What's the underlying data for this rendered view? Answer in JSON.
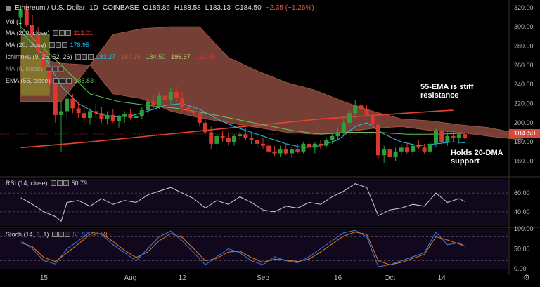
{
  "header": {
    "symbol": "Ethereum / U.S. Dollar",
    "interval": "1D",
    "exchange": "COINBASE",
    "open": "O186.86",
    "high": "H188.58",
    "low": "L183.13",
    "close": "C184.50",
    "change": "−2.35 (−1.26%)"
  },
  "legend": {
    "vol": "Vol (1",
    "ma200": {
      "label": "MA (200, close)",
      "value": "212.01",
      "color": "#e8412e"
    },
    "ma20": {
      "label": "MA (20, close)",
      "value": "178.95",
      "color": "#26b8e8"
    },
    "ichimoku": {
      "label": "Ichimoku (9, 26, 52, 26)",
      "values": [
        "183.27",
        "187.25",
        "184.50",
        "196.67",
        "192.35"
      ],
      "colors": [
        "#26b8e8",
        "#b05a3a",
        "#9bc36a",
        "#c8d67a",
        "#c83a3a"
      ]
    },
    "ma5": {
      "label": "MA (5, close)"
    },
    "ema55": {
      "label": "EMA (55, close)",
      "value": "188.83",
      "color": "#6fbf5a"
    }
  },
  "annotations": {
    "resistance": [
      "55-EMA is stiff",
      "resistance"
    ],
    "support": [
      "Holds 20-DMA",
      "support"
    ]
  },
  "last_price": "184.50",
  "rsi": {
    "label": "RSI (14, close)",
    "value": "50.79",
    "color": "#d0d0d0"
  },
  "stoch": {
    "label": "Stoch (14, 3, 1)",
    "k_value": "55.87",
    "d_value": "56.09",
    "k_color": "#3a7ee8",
    "d_color": "#e87a1a"
  },
  "colors": {
    "up": "#2e9e3a",
    "down": "#d8382e",
    "cloud": "#8a4a3e",
    "cloud_green": "#8a8a2a",
    "ema": "#6fbf5a",
    "ma200": "#e8412e",
    "ma20": "#26b8e8"
  },
  "chart_data": {
    "type": "line",
    "title": "Ethereum / U.S. Dollar 1D COINBASE",
    "x_ticks": [
      "15",
      "Aug",
      "12",
      "Sep",
      "16",
      "Oct",
      "14"
    ],
    "price_axis": {
      "ticks": [
        "320.00",
        "300.00",
        "280.00",
        "260.00",
        "240.00",
        "220.00",
        "200.00",
        "180.00",
        "160.00"
      ],
      "range": [
        145,
        325
      ]
    },
    "rsi_axis": {
      "ticks": [
        "60.00",
        "40.00"
      ],
      "range": [
        25,
        75
      ]
    },
    "stoch_axis": {
      "ticks": [
        "100.00",
        "50.00",
        "0.00"
      ],
      "range": [
        0,
        100
      ]
    },
    "candles": [
      [
        -2,
        310,
        322,
        298,
        318
      ],
      [
        -1,
        318,
        324,
        300,
        302
      ],
      [
        0,
        302,
        312,
        282,
        290
      ],
      [
        1,
        290,
        300,
        270,
        275
      ],
      [
        2,
        275,
        280,
        250,
        258
      ],
      [
        3,
        258,
        266,
        230,
        240
      ],
      [
        4,
        240,
        245,
        200,
        208
      ],
      [
        5,
        208,
        222,
        170,
        212
      ],
      [
        6,
        212,
        230,
        205,
        225
      ],
      [
        7,
        225,
        230,
        210,
        215
      ],
      [
        8,
        215,
        222,
        205,
        210
      ],
      [
        9,
        210,
        218,
        200,
        205
      ],
      [
        10,
        205,
        215,
        198,
        212
      ],
      [
        11,
        212,
        220,
        206,
        210
      ],
      [
        12,
        210,
        216,
        200,
        204
      ],
      [
        13,
        204,
        212,
        198,
        208
      ],
      [
        14,
        208,
        214,
        200,
        202
      ],
      [
        15,
        202,
        208,
        195,
        206
      ],
      [
        16,
        206,
        212,
        200,
        209
      ],
      [
        17,
        209,
        214,
        203,
        205
      ],
      [
        18,
        205,
        210,
        198,
        207
      ],
      [
        19,
        207,
        216,
        204,
        213
      ],
      [
        20,
        213,
        225,
        210,
        222
      ],
      [
        21,
        222,
        228,
        214,
        218
      ],
      [
        22,
        218,
        232,
        214,
        228
      ],
      [
        23,
        228,
        234,
        220,
        224
      ],
      [
        24,
        224,
        236,
        218,
        232
      ],
      [
        25,
        232,
        238,
        222,
        226
      ],
      [
        26,
        226,
        232,
        212,
        216
      ],
      [
        27,
        216,
        220,
        205,
        212
      ],
      [
        28,
        212,
        218,
        206,
        210
      ],
      [
        29,
        210,
        214,
        196,
        200
      ],
      [
        30,
        200,
        206,
        188,
        190
      ],
      [
        31,
        190,
        196,
        172,
        178
      ],
      [
        32,
        178,
        188,
        170,
        186
      ],
      [
        33,
        186,
        192,
        180,
        184
      ],
      [
        34,
        184,
        190,
        176,
        180
      ],
      [
        35,
        180,
        188,
        176,
        186
      ],
      [
        36,
        186,
        192,
        182,
        188
      ],
      [
        37,
        188,
        194,
        182,
        184
      ],
      [
        38,
        184,
        190,
        178,
        182
      ],
      [
        39,
        182,
        186,
        174,
        178
      ],
      [
        40,
        178,
        184,
        172,
        176
      ],
      [
        41,
        176,
        182,
        168,
        170
      ],
      [
        42,
        170,
        176,
        165,
        168
      ],
      [
        43,
        168,
        176,
        164,
        172
      ],
      [
        44,
        172,
        178,
        166,
        168
      ],
      [
        45,
        168,
        175,
        164,
        172
      ],
      [
        46,
        172,
        178,
        168,
        170
      ],
      [
        47,
        170,
        180,
        168,
        178
      ],
      [
        48,
        178,
        184,
        172,
        174
      ],
      [
        49,
        174,
        180,
        168,
        178
      ],
      [
        50,
        178,
        182,
        172,
        176
      ],
      [
        51,
        176,
        184,
        174,
        182
      ],
      [
        52,
        182,
        190,
        178,
        186
      ],
      [
        53,
        186,
        194,
        182,
        190
      ],
      [
        54,
        190,
        206,
        186,
        200
      ],
      [
        55,
        200,
        214,
        196,
        210
      ],
      [
        56,
        210,
        224,
        204,
        218
      ],
      [
        57,
        218,
        226,
        212,
        214
      ],
      [
        58,
        214,
        218,
        206,
        208
      ],
      [
        59,
        208,
        212,
        196,
        198
      ],
      [
        60,
        198,
        202,
        162,
        166
      ],
      [
        61,
        166,
        176,
        158,
        172
      ],
      [
        62,
        172,
        178,
        160,
        164
      ],
      [
        63,
        164,
        174,
        160,
        170
      ],
      [
        64,
        170,
        178,
        166,
        174
      ],
      [
        65,
        174,
        180,
        168,
        170
      ],
      [
        66,
        170,
        178,
        166,
        176
      ],
      [
        67,
        176,
        182,
        172,
        174
      ],
      [
        68,
        174,
        178,
        168,
        170
      ],
      [
        69,
        170,
        180,
        168,
        178
      ],
      [
        70,
        178,
        194,
        174,
        192
      ],
      [
        71,
        192,
        196,
        176,
        180
      ],
      [
        72,
        180,
        190,
        176,
        186
      ],
      [
        73,
        186,
        192,
        180,
        184
      ],
      [
        74,
        184,
        190,
        178,
        188
      ],
      [
        75,
        188,
        190,
        183,
        184.5
      ]
    ],
    "ema55": [
      [
        -2,
        300
      ],
      [
        5,
        260
      ],
      [
        10,
        230
      ],
      [
        15,
        222
      ],
      [
        20,
        218
      ],
      [
        25,
        215
      ],
      [
        30,
        210
      ],
      [
        35,
        204
      ],
      [
        40,
        198
      ],
      [
        45,
        192
      ],
      [
        50,
        188
      ],
      [
        55,
        190
      ],
      [
        60,
        190
      ],
      [
        65,
        188
      ],
      [
        70,
        188
      ],
      [
        75,
        189
      ]
    ],
    "ma20": [
      [
        -2,
        295
      ],
      [
        2,
        270
      ],
      [
        5,
        238
      ],
      [
        8,
        220
      ],
      [
        11,
        210
      ],
      [
        14,
        206
      ],
      [
        17,
        207
      ],
      [
        20,
        212
      ],
      [
        23,
        218
      ],
      [
        26,
        220
      ],
      [
        29,
        214
      ],
      [
        32,
        204
      ],
      [
        35,
        196
      ],
      [
        38,
        190
      ],
      [
        41,
        184
      ],
      [
        44,
        178
      ],
      [
        47,
        174
      ],
      [
        50,
        176
      ],
      [
        53,
        182
      ],
      [
        56,
        196
      ],
      [
        58,
        200
      ],
      [
        61,
        188
      ],
      [
        64,
        180
      ],
      [
        67,
        176
      ],
      [
        70,
        178
      ],
      [
        73,
        180
      ],
      [
        75,
        179
      ]
    ],
    "ma200": [
      [
        -2,
        174
      ],
      [
        10,
        180
      ],
      [
        20,
        186
      ],
      [
        30,
        192
      ],
      [
        40,
        198
      ],
      [
        50,
        204
      ],
      [
        60,
        208
      ],
      [
        70,
        212
      ],
      [
        73,
        213
      ]
    ],
    "cloud_top": [
      [
        -2,
        270
      ],
      [
        5,
        262
      ],
      [
        10,
        260
      ],
      [
        14,
        292
      ],
      [
        19,
        298
      ],
      [
        24,
        300
      ],
      [
        29,
        300
      ],
      [
        34,
        268
      ],
      [
        39,
        254
      ],
      [
        44,
        242
      ],
      [
        49,
        234
      ],
      [
        54,
        222
      ],
      [
        59,
        212
      ],
      [
        64,
        204
      ],
      [
        69,
        202
      ],
      [
        74,
        198
      ],
      [
        79,
        195
      ],
      [
        85,
        188
      ]
    ],
    "cloud_bot": [
      [
        -2,
        222
      ],
      [
        5,
        222
      ],
      [
        10,
        260
      ],
      [
        14,
        230
      ],
      [
        19,
        225
      ],
      [
        24,
        212
      ],
      [
        29,
        205
      ],
      [
        34,
        200
      ],
      [
        39,
        195
      ],
      [
        44,
        190
      ],
      [
        49,
        188
      ],
      [
        54,
        190
      ],
      [
        59,
        194
      ],
      [
        64,
        196
      ],
      [
        69,
        192
      ],
      [
        74,
        190
      ],
      [
        79,
        186
      ],
      [
        85,
        182
      ]
    ],
    "rsi": [
      [
        -2,
        55
      ],
      [
        0,
        48
      ],
      [
        2,
        40
      ],
      [
        4,
        35
      ],
      [
        5,
        30
      ],
      [
        6,
        50
      ],
      [
        8,
        52
      ],
      [
        10,
        46
      ],
      [
        12,
        54
      ],
      [
        14,
        48
      ],
      [
        16,
        52
      ],
      [
        18,
        50
      ],
      [
        20,
        58
      ],
      [
        22,
        62
      ],
      [
        24,
        66
      ],
      [
        26,
        60
      ],
      [
        28,
        54
      ],
      [
        30,
        44
      ],
      [
        32,
        52
      ],
      [
        34,
        48
      ],
      [
        36,
        56
      ],
      [
        38,
        50
      ],
      [
        40,
        42
      ],
      [
        42,
        40
      ],
      [
        44,
        46
      ],
      [
        46,
        44
      ],
      [
        48,
        50
      ],
      [
        50,
        48
      ],
      [
        52,
        56
      ],
      [
        54,
        62
      ],
      [
        56,
        70
      ],
      [
        58,
        66
      ],
      [
        60,
        36
      ],
      [
        62,
        42
      ],
      [
        64,
        44
      ],
      [
        66,
        48
      ],
      [
        68,
        46
      ],
      [
        70,
        60
      ],
      [
        72,
        50
      ],
      [
        74,
        54
      ],
      [
        75,
        51
      ]
    ],
    "stoch_k": [
      [
        -2,
        70
      ],
      [
        0,
        50
      ],
      [
        2,
        20
      ],
      [
        4,
        12
      ],
      [
        6,
        50
      ],
      [
        8,
        70
      ],
      [
        10,
        92
      ],
      [
        12,
        86
      ],
      [
        14,
        60
      ],
      [
        16,
        40
      ],
      [
        18,
        20
      ],
      [
        20,
        50
      ],
      [
        22,
        80
      ],
      [
        24,
        94
      ],
      [
        26,
        70
      ],
      [
        28,
        40
      ],
      [
        30,
        10
      ],
      [
        32,
        30
      ],
      [
        34,
        50
      ],
      [
        36,
        40
      ],
      [
        38,
        20
      ],
      [
        40,
        10
      ],
      [
        42,
        30
      ],
      [
        44,
        20
      ],
      [
        46,
        15
      ],
      [
        48,
        30
      ],
      [
        50,
        50
      ],
      [
        52,
        70
      ],
      [
        54,
        90
      ],
      [
        56,
        96
      ],
      [
        58,
        80
      ],
      [
        60,
        5
      ],
      [
        62,
        10
      ],
      [
        64,
        20
      ],
      [
        66,
        30
      ],
      [
        68,
        40
      ],
      [
        70,
        92
      ],
      [
        72,
        60
      ],
      [
        74,
        65
      ],
      [
        75,
        56
      ]
    ],
    "stoch_d": [
      [
        -2,
        65
      ],
      [
        0,
        55
      ],
      [
        2,
        28
      ],
      [
        4,
        18
      ],
      [
        6,
        40
      ],
      [
        8,
        62
      ],
      [
        10,
        86
      ],
      [
        12,
        88
      ],
      [
        14,
        68
      ],
      [
        16,
        46
      ],
      [
        18,
        28
      ],
      [
        20,
        42
      ],
      [
        22,
        70
      ],
      [
        24,
        88
      ],
      [
        26,
        78
      ],
      [
        28,
        50
      ],
      [
        30,
        20
      ],
      [
        32,
        26
      ],
      [
        34,
        42
      ],
      [
        36,
        44
      ],
      [
        38,
        28
      ],
      [
        40,
        16
      ],
      [
        42,
        24
      ],
      [
        44,
        22
      ],
      [
        46,
        18
      ],
      [
        48,
        24
      ],
      [
        50,
        42
      ],
      [
        52,
        62
      ],
      [
        54,
        82
      ],
      [
        56,
        92
      ],
      [
        58,
        86
      ],
      [
        60,
        20
      ],
      [
        62,
        10
      ],
      [
        64,
        16
      ],
      [
        66,
        26
      ],
      [
        68,
        36
      ],
      [
        70,
        80
      ],
      [
        72,
        72
      ],
      [
        74,
        62
      ],
      [
        75,
        56
      ]
    ]
  }
}
